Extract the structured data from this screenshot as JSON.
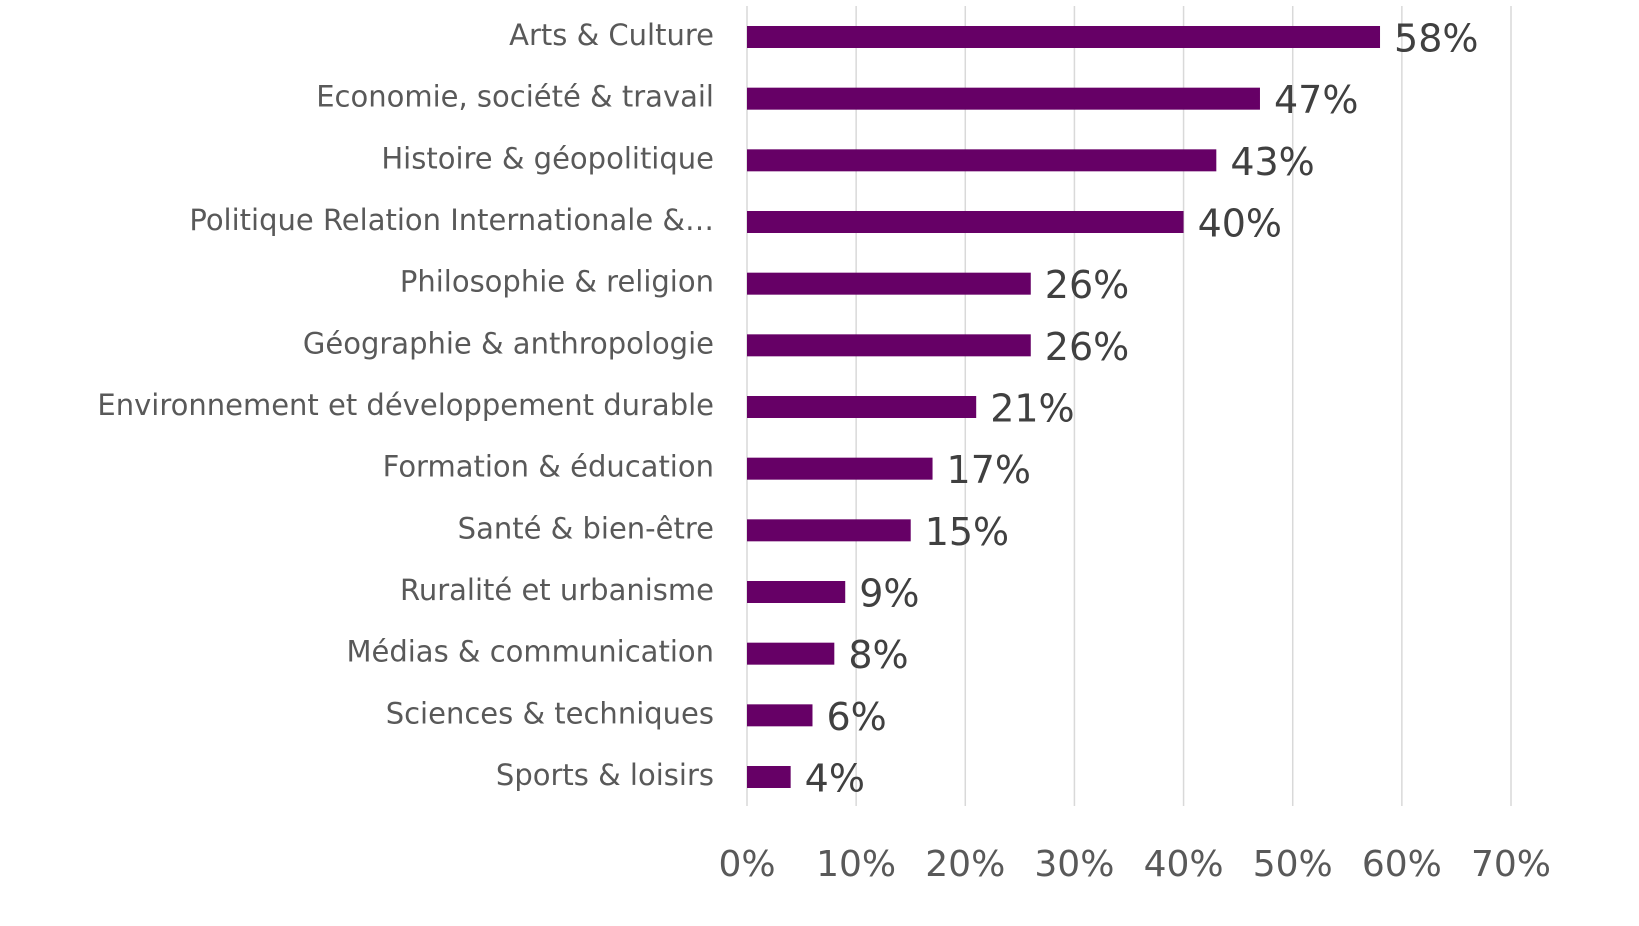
{
  "chart_data": {
    "type": "bar",
    "orientation": "horizontal",
    "categories": [
      "Arts & Culture",
      "Economie, société & travail",
      "Histoire & géopolitique",
      "Politique Relation Internationale &…",
      "Philosophie & religion",
      "Géographie & anthropologie",
      "Environnement et développement durable",
      "Formation & éducation",
      "Santé & bien-être",
      "Ruralité et urbanisme",
      "Médias & communication",
      "Sciences & techniques",
      "Sports & loisirs"
    ],
    "values": [
      58,
      47,
      43,
      40,
      26,
      26,
      21,
      17,
      15,
      9,
      8,
      6,
      4
    ],
    "value_labels": [
      "58%",
      "47%",
      "43%",
      "40%",
      "26%",
      "26%",
      "21%",
      "17%",
      "15%",
      "9%",
      "8%",
      "6%",
      "4%"
    ],
    "color": "#660066",
    "xlim": [
      0,
      70
    ],
    "xticks": [
      {
        "value": 0,
        "label": "0%"
      },
      {
        "value": 10,
        "label": "10%"
      },
      {
        "value": 20,
        "label": "20%"
      },
      {
        "value": 30,
        "label": "30%"
      },
      {
        "value": 40,
        "label": "40%"
      },
      {
        "value": 50,
        "label": "50%"
      },
      {
        "value": 60,
        "label": "60%"
      },
      {
        "value": 70,
        "label": "70%"
      }
    ],
    "grid": true
  }
}
